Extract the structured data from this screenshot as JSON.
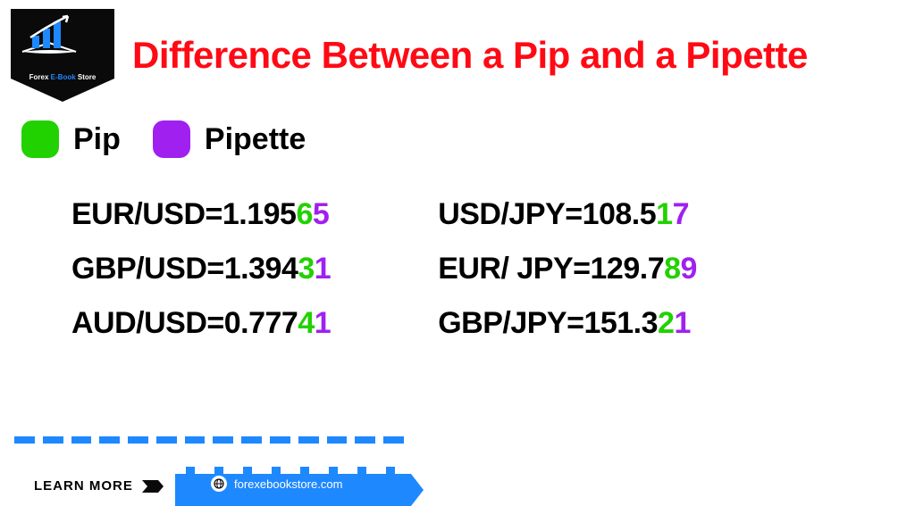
{
  "colors": {
    "title": "#ff0a14",
    "pip": "#22d100",
    "pipette": "#a020f0",
    "blue": "#1e88ff",
    "dark": "#0a0a0a",
    "text": "#000000"
  },
  "logo": {
    "line1": "Forex",
    "accent": "E-Book",
    "line2": "Store"
  },
  "title": "Difference Between a Pip and a Pipette",
  "legend": {
    "pip": "Pip",
    "pipette": "Pipette"
  },
  "pairs": {
    "left": [
      {
        "label": "EUR/USD=",
        "base": "1.195",
        "pip": "6",
        "pipette": "5"
      },
      {
        "label": "GBP/USD=",
        "base": "1.394",
        "pip": "3",
        "pipette": "1"
      },
      {
        "label": "AUD/USD=",
        "base": "0.777",
        "pip": "4",
        "pipette": "1"
      }
    ],
    "right": [
      {
        "label": "USD/JPY=",
        "base": "108.5",
        "pip": "1",
        "pipette": "7"
      },
      {
        "label": "EUR/ JPY=",
        "base": "129.7",
        "pip": "8",
        "pipette": "9"
      },
      {
        "label": "GBP/JPY=",
        "base": "151.3",
        "pip": "2",
        "pipette": "1"
      }
    ]
  },
  "footer": {
    "learn_more": "LEARN MORE",
    "url": "forexebookstore.com"
  }
}
